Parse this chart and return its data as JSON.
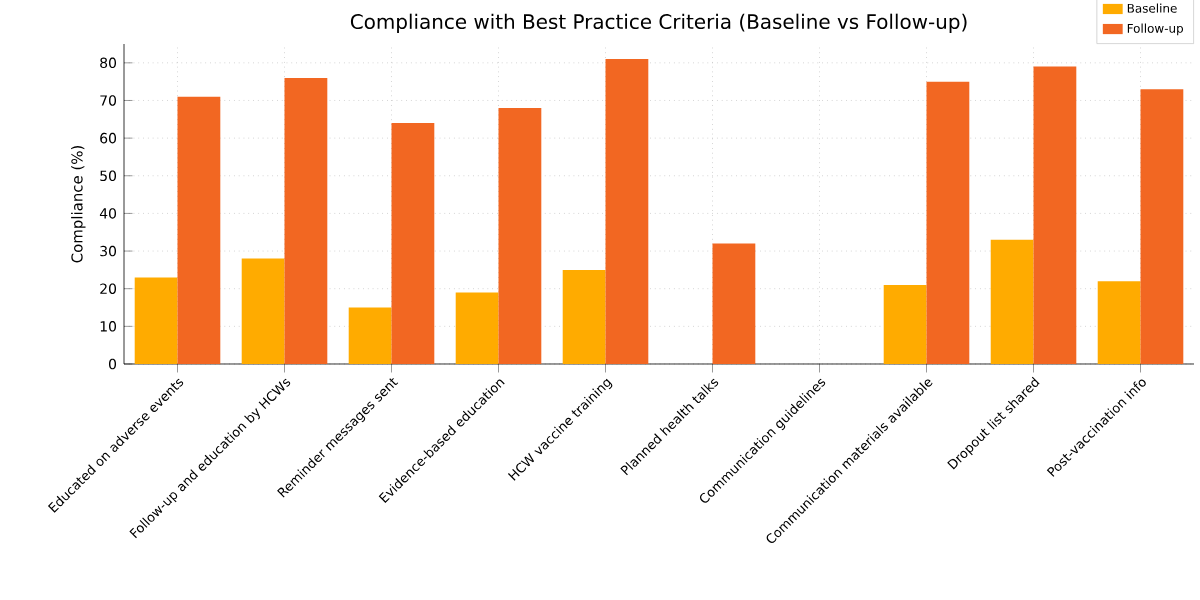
{
  "chart_data": {
    "type": "bar",
    "title": "Compliance with Best Practice Criteria (Baseline vs Follow-up)",
    "ylabel": "Compliance (%)",
    "categories": [
      "Educated on adverse events",
      "Follow-up and education by HCWs",
      "Reminder messages sent",
      "Evidence-based education",
      "HCW vaccine training",
      "Planned health talks",
      "Communication guidelines",
      "Communication materials available",
      "Dropout list shared",
      "Post-vaccination info"
    ],
    "series": [
      {
        "name": "Baseline",
        "color": "#ffab00",
        "values": [
          23,
          28,
          15,
          19,
          25,
          0,
          0,
          21,
          33,
          22
        ]
      },
      {
        "name": "Follow-up",
        "color": "#f26722",
        "values": [
          71,
          76,
          64,
          68,
          81,
          32,
          0,
          75,
          79,
          73
        ]
      }
    ],
    "ylim": [
      0,
      85
    ],
    "yticks": [
      0,
      10,
      20,
      30,
      40,
      50,
      60,
      70,
      80
    ],
    "grid": true,
    "legend": "top right"
  }
}
